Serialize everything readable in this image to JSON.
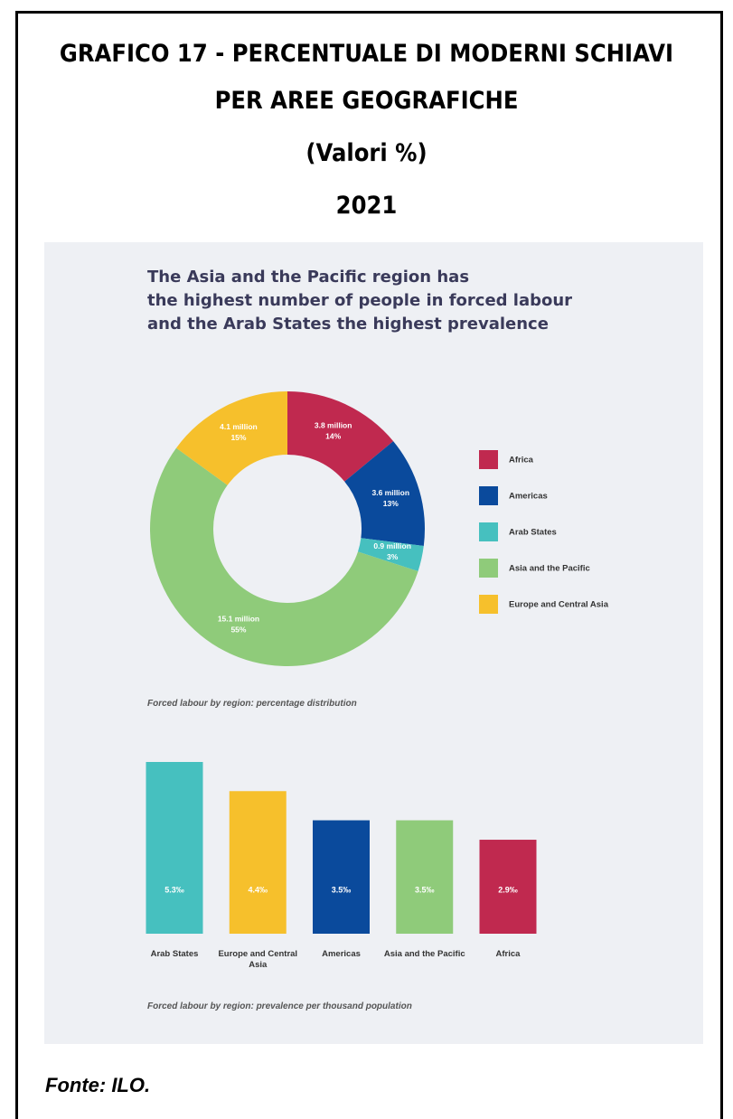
{
  "header": {
    "title_lines": [
      "GRAFICO 17 - PERCENTUALE DI MODERNI SCHIAVI",
      "PER AREE GEOGRAFICHE",
      "(Valori %)",
      "2021"
    ]
  },
  "source": "Fonte: ILO.",
  "chart_data": [
    {
      "type": "donut",
      "title": [
        "The Asia and the Pacific region has",
        "the highest number of people in forced labour",
        "and the Arab States the highest prevalence"
      ],
      "categories": [
        "Africa",
        "Americas",
        "Arab States",
        "Asia and the Pacific",
        "Europe and Central Asia"
      ],
      "colors": [
        "#c0294f",
        "#0a4a9c",
        "#46c0bf",
        "#8fcb7a",
        "#f6c02c"
      ],
      "values": [
        14,
        13,
        3,
        55,
        15
      ],
      "value_labels": [
        "14%",
        "13%",
        "3%",
        "55%",
        "15%"
      ],
      "counts": [
        3800000,
        3600000,
        900000,
        15100000,
        4100000
      ],
      "count_labels": [
        "3.8 million",
        "3.6 million",
        "0.9 million",
        "15.1 million",
        "4.1 million"
      ],
      "legend": "right",
      "caption": "Forced labour by region: percentage distribution"
    },
    {
      "type": "bar",
      "categories": [
        "Arab States",
        "Europe and Central Asia",
        "Americas",
        "Asia and the Pacific",
        "Africa"
      ],
      "colors": [
        "#46c0bf",
        "#f6c02c",
        "#0a4a9c",
        "#8fcb7a",
        "#c0294f"
      ],
      "values": [
        5.3,
        4.4,
        3.5,
        3.5,
        2.9
      ],
      "value_labels": [
        "5.3‰",
        "4.4‰",
        "3.5‰",
        "3.5‰",
        "2.9‰"
      ],
      "caption": "Forced labour by region: prevalence per thousand population"
    }
  ]
}
